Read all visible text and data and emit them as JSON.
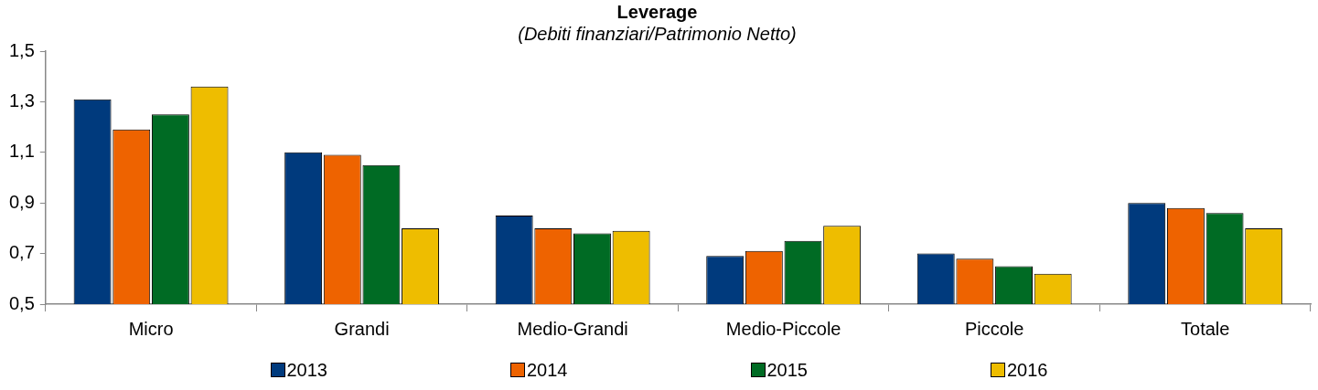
{
  "chart_data": {
    "type": "bar",
    "title": "Leverage",
    "subtitle": "(Debiti finanziari/Patrimonio Netto)",
    "categories": [
      "Micro",
      "Grandi",
      "Medio-Grandi",
      "Medio-Piccole",
      "Piccole",
      "Totale"
    ],
    "series": [
      {
        "name": "2013",
        "color": "#003a7d",
        "values": [
          1.31,
          1.1,
          0.85,
          0.69,
          0.7,
          0.9
        ]
      },
      {
        "name": "2014",
        "color": "#ee6300",
        "values": [
          1.19,
          1.09,
          0.8,
          0.71,
          0.68,
          0.88
        ]
      },
      {
        "name": "2015",
        "color": "#006b24",
        "values": [
          1.25,
          1.05,
          0.78,
          0.75,
          0.65,
          0.86
        ]
      },
      {
        "name": "2016",
        "color": "#eebd00",
        "values": [
          1.36,
          0.8,
          0.79,
          0.81,
          0.62,
          0.8
        ]
      }
    ],
    "ylim": [
      0.5,
      1.5
    ],
    "yticks": [
      {
        "value": 0.5,
        "label": "0,5"
      },
      {
        "value": 0.7,
        "label": "0,7"
      },
      {
        "value": 0.9,
        "label": "0,9"
      },
      {
        "value": 1.1,
        "label": "1,1"
      },
      {
        "value": 1.3,
        "label": "1,3"
      },
      {
        "value": 1.5,
        "label": "1,5"
      }
    ],
    "grid": false,
    "legend": "bottom"
  }
}
